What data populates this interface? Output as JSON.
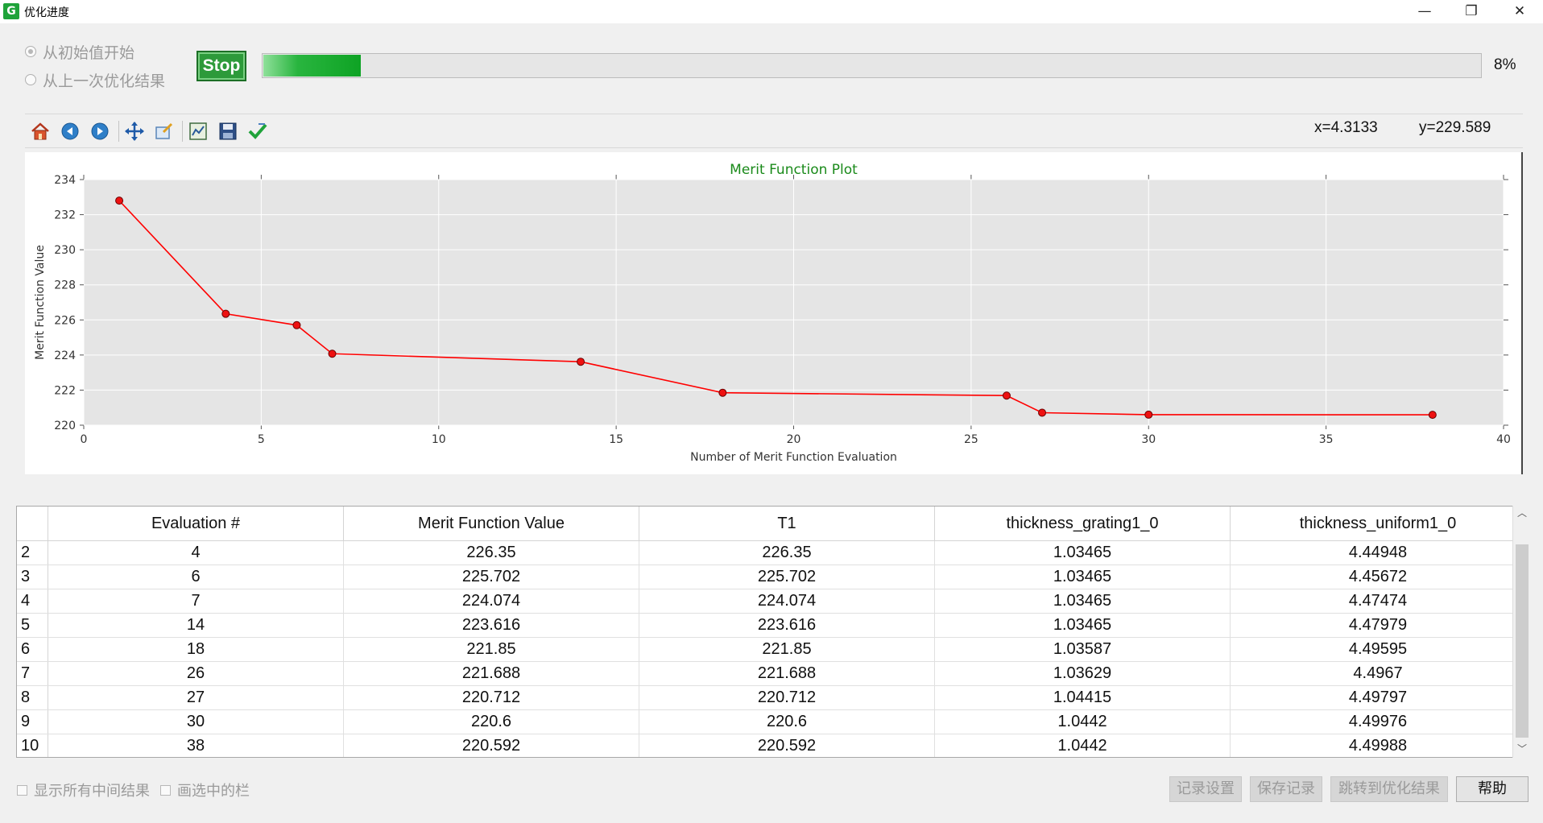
{
  "window": {
    "title": "优化进度",
    "app_icon_letter": "G",
    "minimize": "—",
    "restore": "❐",
    "close": "✕"
  },
  "options": {
    "start_from_initial": "从初始值开始",
    "start_from_last": "从上一次优化结果",
    "selected": "start_from_initial"
  },
  "controls": {
    "stop_label": "Stop",
    "progress_percent": 8,
    "progress_text": "8%"
  },
  "toolbar": {
    "icons": [
      "home-icon",
      "back-icon",
      "forward-icon",
      "pan-icon",
      "zoom-icon",
      "subplots-icon",
      "save-icon",
      "edit-check-icon"
    ],
    "coord_x": "x=4.3133",
    "coord_y": "y=229.589"
  },
  "chart_data": {
    "type": "line",
    "title": "Merit Function Plot",
    "xlabel": "Number of Merit Function Evaluation",
    "ylabel": "Merit Function Value",
    "xlim": [
      0,
      40
    ],
    "ylim": [
      220,
      234
    ],
    "xticks": [
      0,
      5,
      10,
      15,
      20,
      25,
      30,
      35,
      40
    ],
    "yticks": [
      220,
      222,
      224,
      226,
      228,
      230,
      232,
      234
    ],
    "grid": true,
    "series": [
      {
        "color": "#ff0000",
        "x": [
          1,
          4,
          6,
          7,
          14,
          18,
          26,
          27,
          30,
          38
        ],
        "y": [
          232.8,
          226.35,
          225.702,
          224.074,
          223.616,
          221.85,
          221.688,
          220.712,
          220.6,
          220.592
        ]
      }
    ]
  },
  "table": {
    "columns": [
      "Evaluation #",
      "Merit Function Value",
      "T1",
      "thickness_grating1_0",
      "thickness_uniform1_0"
    ],
    "rows": [
      {
        "row": "2",
        "cells": [
          "4",
          "226.35",
          "226.35",
          "1.03465",
          "4.44948"
        ]
      },
      {
        "row": "3",
        "cells": [
          "6",
          "225.702",
          "225.702",
          "1.03465",
          "4.45672"
        ]
      },
      {
        "row": "4",
        "cells": [
          "7",
          "224.074",
          "224.074",
          "1.03465",
          "4.47474"
        ]
      },
      {
        "row": "5",
        "cells": [
          "14",
          "223.616",
          "223.616",
          "1.03465",
          "4.47979"
        ]
      },
      {
        "row": "6",
        "cells": [
          "18",
          "221.85",
          "221.85",
          "1.03587",
          "4.49595"
        ]
      },
      {
        "row": "7",
        "cells": [
          "26",
          "221.688",
          "221.688",
          "1.03629",
          "4.4967"
        ]
      },
      {
        "row": "8",
        "cells": [
          "27",
          "220.712",
          "220.712",
          "1.04415",
          "4.49797"
        ]
      },
      {
        "row": "9",
        "cells": [
          "30",
          "220.6",
          "220.6",
          "1.0442",
          "4.49976"
        ]
      },
      {
        "row": "10",
        "cells": [
          "38",
          "220.592",
          "220.592",
          "1.0442",
          "4.49988"
        ]
      }
    ]
  },
  "bottom": {
    "show_all_intermediate": "显示所有中间结果",
    "plot_selected_columns": "画选中的栏",
    "record_settings": "记录设置",
    "save_record": "保存记录",
    "jump_to_result": "跳转到优化结果",
    "help": "帮助"
  }
}
